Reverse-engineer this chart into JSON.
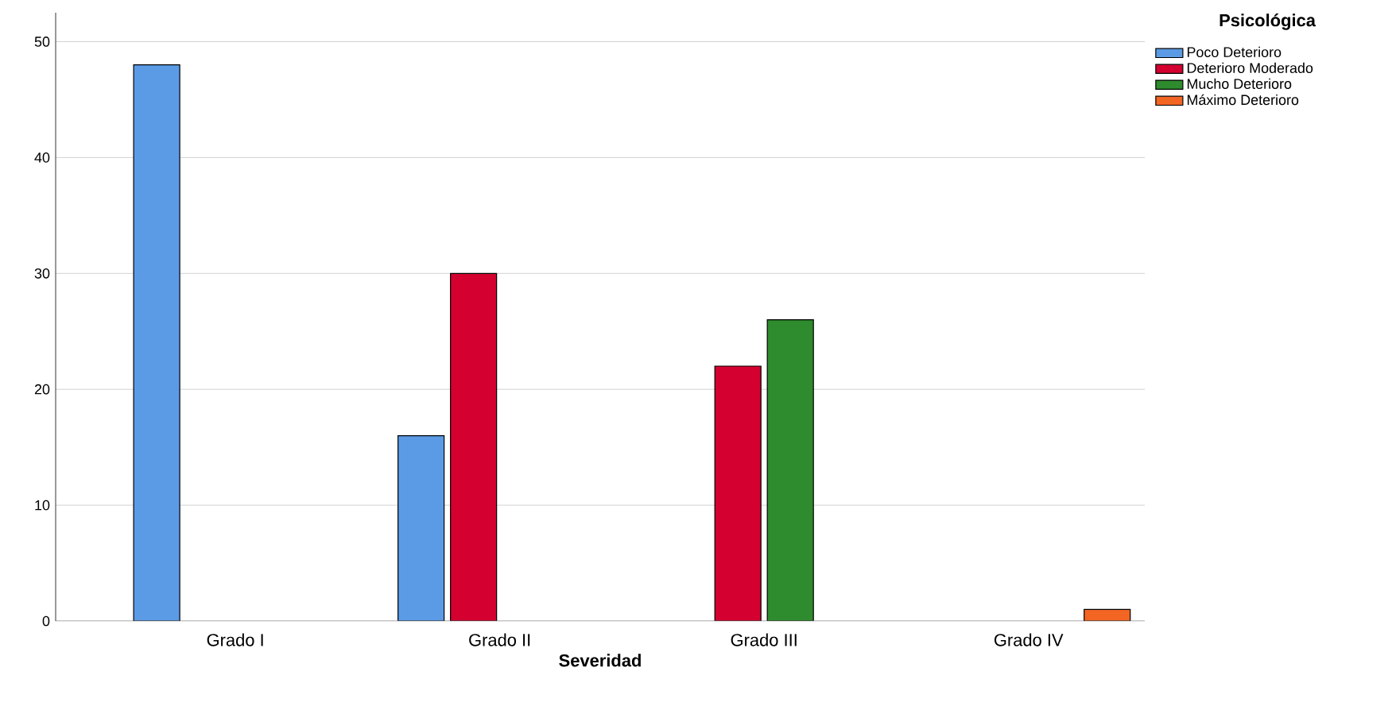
{
  "chart_data": {
    "type": "bar",
    "xlabel": "Severidad",
    "legend_title": "Psicológica",
    "categories": [
      "Grado I",
      "Grado II",
      "Grado III",
      "Grado IV"
    ],
    "series": [
      {
        "name": "Poco Deterioro",
        "color": "#5b9be6",
        "values": [
          48,
          16,
          null,
          null
        ]
      },
      {
        "name": "Deterioro Moderado",
        "color": "#d40030",
        "values": [
          null,
          30,
          22,
          null
        ]
      },
      {
        "name": "Mucho Deterioro",
        "color": "#2e8b2e",
        "values": [
          null,
          null,
          26,
          null
        ]
      },
      {
        "name": "Máximo Deterioro",
        "color": "#f26522",
        "values": [
          null,
          null,
          null,
          1
        ]
      }
    ],
    "ylim": [
      0,
      52.5
    ],
    "yticks": [
      0,
      10,
      20,
      30,
      40,
      50
    ],
    "grid": "y",
    "legend": "top right"
  }
}
